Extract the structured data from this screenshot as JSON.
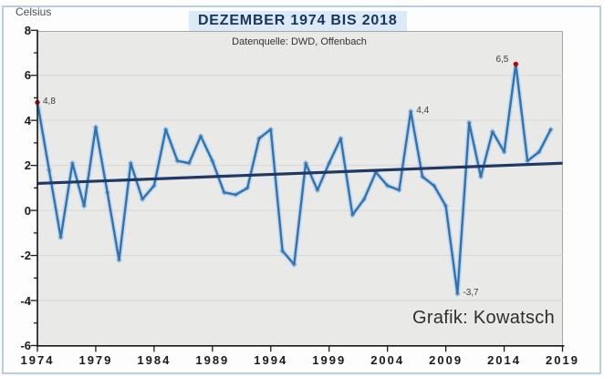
{
  "page": {
    "credit": "Grafik: Kowatsch"
  },
  "chart_data": {
    "type": "line",
    "title": "DEZEMBER 1974 BIS 2018",
    "subtitle": "Datenquelle: DWD, Offenbach",
    "unit_label": "Celsius",
    "xlim": [
      1974,
      2019
    ],
    "ylim": [
      -6,
      8
    ],
    "grid": "horizontal, every 2 °C",
    "legend_position": "none",
    "x_ticks": [
      1974,
      1979,
      1984,
      1989,
      1994,
      1999,
      2004,
      2009,
      2014,
      2019
    ],
    "y_ticks": [
      8,
      6,
      4,
      2,
      0,
      -2,
      -4,
      -6
    ],
    "x_start_year": 1974,
    "values": [
      4.8,
      1.8,
      -1.2,
      2.1,
      0.2,
      3.7,
      0.8,
      -2.2,
      2.1,
      0.5,
      1.1,
      3.6,
      2.2,
      2.1,
      3.3,
      2.2,
      0.8,
      0.7,
      1.0,
      3.2,
      3.6,
      -1.8,
      -2.4,
      2.1,
      0.9,
      2.1,
      3.2,
      -0.2,
      0.5,
      1.7,
      1.1,
      0.9,
      4.4,
      1.5,
      1.1,
      0.2,
      -3.7,
      3.9,
      1.5,
      3.5,
      2.6,
      6.5,
      2.2,
      2.6,
      3.6
    ],
    "trend": {
      "start_value": 1.2,
      "end_value": 2.1
    },
    "annotations": [
      {
        "label": "4,8",
        "year": 1974,
        "value": 4.8,
        "side": "right"
      },
      {
        "label": "4,4",
        "year": 2006,
        "value": 4.4,
        "side": "right"
      },
      {
        "label": "6,5",
        "year": 2015,
        "value": 6.5,
        "side": "left"
      },
      {
        "label": "-3,7",
        "year": 2010,
        "value": -3.7,
        "side": "right"
      }
    ],
    "highlight_points": [
      {
        "year": 1974,
        "value": 4.8
      },
      {
        "year": 2015,
        "value": 6.5
      }
    ],
    "colors": {
      "series_line": "#2e74b5",
      "series_halo": "#a9c8e6",
      "marker": "#8cb6de",
      "trend_line": "#1f3864",
      "highlight_marker": "#c00000",
      "plot_bg": "#e9e9e7",
      "gridline": "#d7d7d5",
      "axis": "#1a1a1a",
      "title_text": "#17365d",
      "title_bg": "#dce9f7",
      "outer_border": "#b9cde5"
    }
  }
}
